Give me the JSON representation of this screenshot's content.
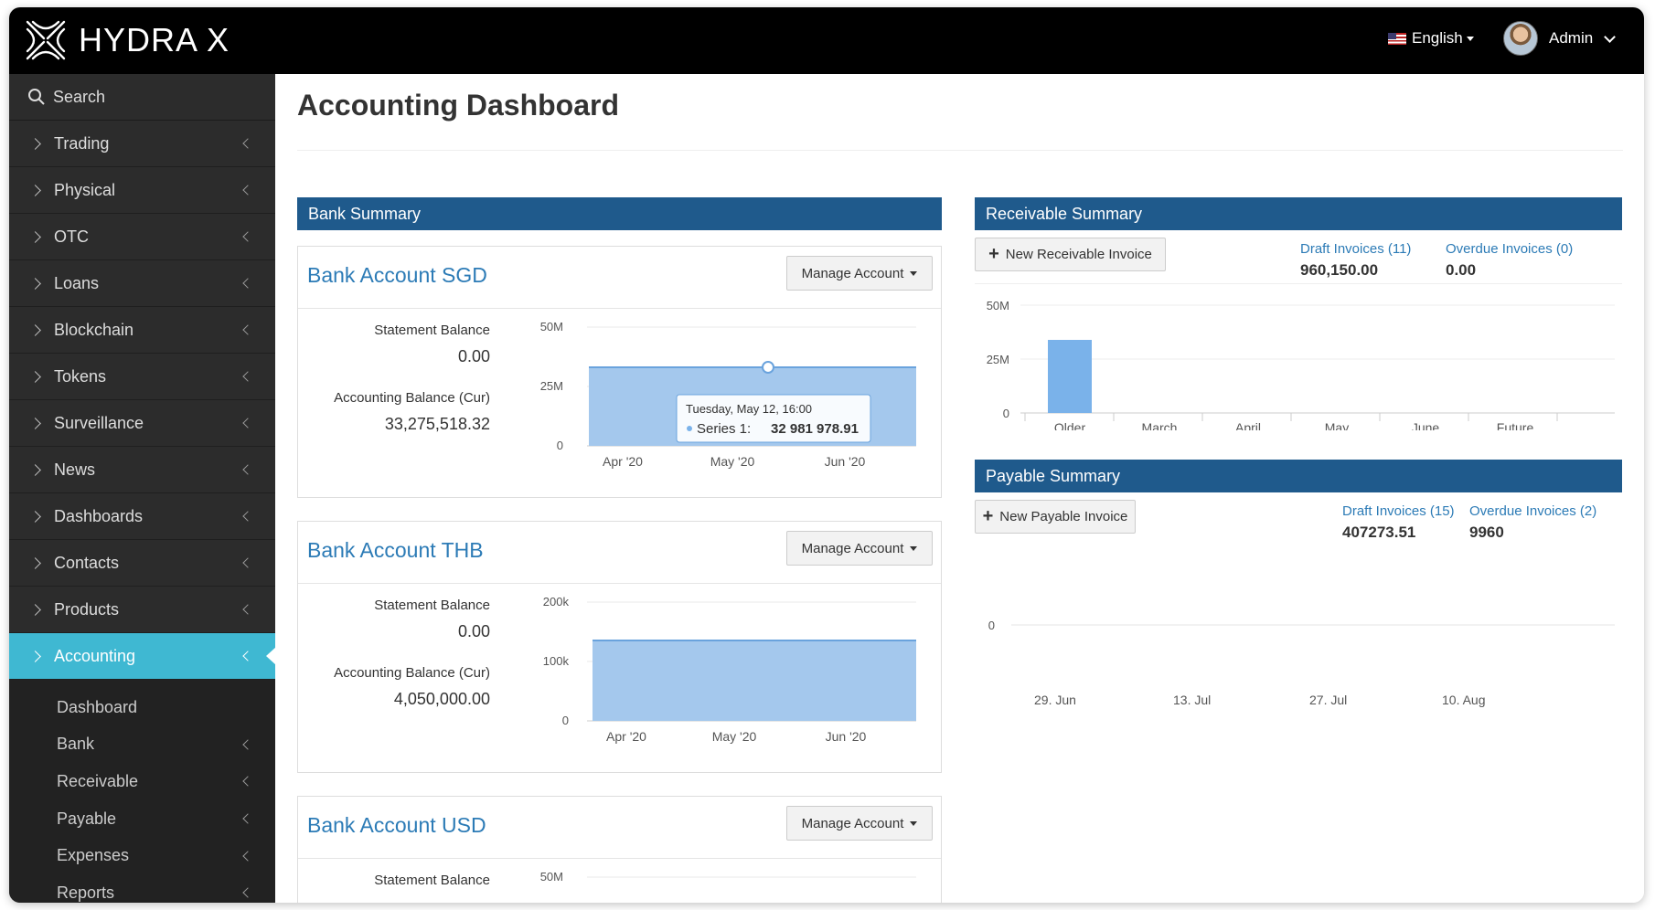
{
  "app": {
    "brand": "HYDRA X",
    "language": "English",
    "user": "Admin"
  },
  "colors": {
    "accent": "#3fb8d2",
    "panel_header": "#1f5a8c",
    "link": "#2c7bb6",
    "chart_fill": "#a4c8ed",
    "bar": "#7ab2ea"
  },
  "sidebar": {
    "search_label": "Search",
    "items": [
      {
        "label": "Trading"
      },
      {
        "label": "Physical"
      },
      {
        "label": "OTC"
      },
      {
        "label": "Loans"
      },
      {
        "label": "Blockchain"
      },
      {
        "label": "Tokens"
      },
      {
        "label": "Surveillance"
      },
      {
        "label": "News"
      },
      {
        "label": "Dashboards"
      },
      {
        "label": "Contacts"
      },
      {
        "label": "Products"
      },
      {
        "label": "Accounting"
      }
    ],
    "sub_items": [
      {
        "label": "Dashboard"
      },
      {
        "label": "Bank"
      },
      {
        "label": "Receivable"
      },
      {
        "label": "Payable"
      },
      {
        "label": "Expenses"
      },
      {
        "label": "Reports"
      }
    ]
  },
  "page": {
    "title": "Accounting Dashboard"
  },
  "bank_summary": {
    "header": "Bank Summary",
    "manage_label": "Manage Account",
    "statement_label": "Statement Balance",
    "accounting_label": "Accounting Balance (Cur)",
    "accounts": [
      {
        "title": "Bank Account SGD",
        "statement_balance": "0.00",
        "accounting_balance": "33,275,518.32",
        "y_ticks": [
          "50M",
          "25M",
          "0"
        ],
        "x_ticks": [
          "Apr '20",
          "May '20",
          "Jun '20"
        ],
        "tooltip": {
          "date": "Tuesday, May 12, 16:00",
          "series": "Series 1:",
          "value": "32 981 978.91"
        }
      },
      {
        "title": "Bank Account THB",
        "statement_balance": "0.00",
        "accounting_balance": "4,050,000.00",
        "y_ticks": [
          "200k",
          "100k",
          "0"
        ],
        "x_ticks": [
          "Apr '20",
          "May '20",
          "Jun '20"
        ]
      },
      {
        "title": "Bank Account USD",
        "statement_balance": "",
        "accounting_balance": "",
        "y_ticks": [
          "50M"
        ]
      }
    ]
  },
  "receivable": {
    "header": "Receivable Summary",
    "new_label": "New Receivable Invoice",
    "draft_label": "Draft Invoices (11)",
    "draft_value": "960,150.00",
    "overdue_label": "Overdue Invoices (0)",
    "overdue_value": "0.00",
    "y_ticks": [
      "50M",
      "25M",
      "0"
    ],
    "categories": [
      "Older",
      "March",
      "April",
      "May",
      "June",
      "Future"
    ]
  },
  "payable": {
    "header": "Payable Summary",
    "new_label": "New Payable Invoice",
    "draft_label": "Draft Invoices (15)",
    "draft_value": "407273.51",
    "overdue_label": "Overdue Invoices (2)",
    "overdue_value": "9960",
    "y_ticks": [
      "0"
    ],
    "x_ticks": [
      "29. Jun",
      "13. Jul",
      "27. Jul",
      "10. Aug"
    ]
  },
  "chart_data": [
    {
      "type": "area",
      "title": "",
      "series": [
        {
          "values": [
            33,
            33,
            33,
            33
          ]
        }
      ],
      "x": [
        "Apr '20",
        "May '20",
        "Jun '20",
        "Jun '20"
      ],
      "ylim": [
        0,
        50
      ],
      "y_tick_labels": [
        "0",
        "25M",
        "50M"
      ],
      "x_tick_labels": [
        "Apr '20",
        "May '20",
        "Jun '20"
      ]
    },
    {
      "type": "area",
      "title": "",
      "series": [
        {
          "values": [
            134,
            134,
            134,
            134
          ]
        }
      ],
      "x": [
        "Apr '20",
        "May '20",
        "Jun '20",
        "Jun '20"
      ],
      "ylim": [
        0,
        200
      ],
      "y_tick_labels": [
        "0",
        "100k",
        "200k"
      ],
      "x_tick_labels": [
        "Apr '20",
        "May '20",
        "Jun '20"
      ]
    },
    {
      "type": "bar",
      "title": "",
      "categories": [
        "Older",
        "March",
        "April",
        "May",
        "June",
        "Future"
      ],
      "values": [
        34,
        0,
        0,
        0,
        0,
        0
      ],
      "ylim": [
        0,
        50
      ],
      "y_tick_labels": [
        "0",
        "25M",
        "50M"
      ]
    },
    {
      "type": "line",
      "title": "",
      "series": [],
      "x_tick_labels": [
        "29. Jun",
        "13. Jul",
        "27. Jul",
        "10. Aug"
      ],
      "y_tick_labels": [
        "0"
      ]
    }
  ]
}
